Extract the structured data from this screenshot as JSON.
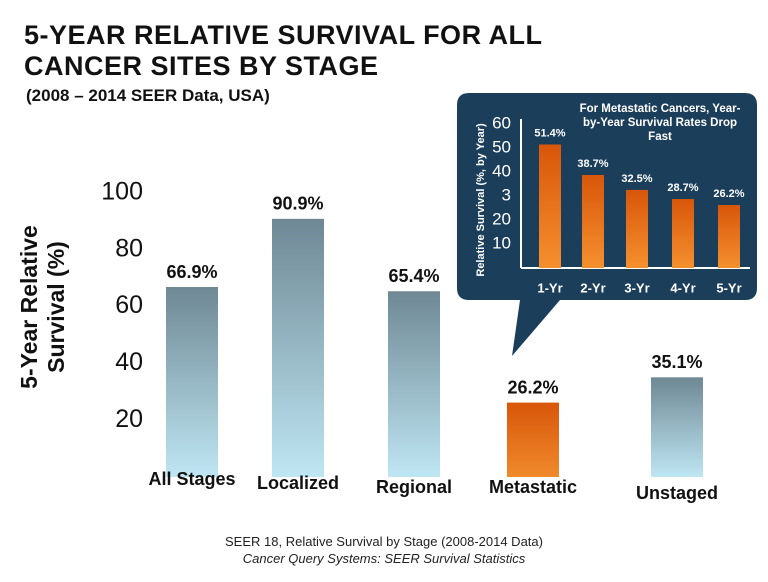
{
  "chart_data": [
    {
      "type": "bar",
      "title": "5-YEAR RELATIVE SURVIVAL FOR ALL CANCER SITES BY STAGE",
      "subtitle": "(2008 – 2014 SEER Data, USA)",
      "y_label": "5-Year Relative Survival (%)",
      "categories": [
        "All Stages",
        "Localized",
        "Regional",
        "Metastatic",
        "Unstaged"
      ],
      "values": [
        66.9,
        90.9,
        65.4,
        26.2,
        35.1
      ],
      "value_labels": [
        "66.9%",
        "90.9%",
        "65.4%",
        "26.2%",
        "35.1%"
      ],
      "colors": [
        "#6e8894",
        "#6e8894",
        "#6e8894",
        "#d8560a",
        "#6e8894"
      ],
      "colors_bottom": [
        "#bfe6f3",
        "#bfe6f3",
        "#bfe6f3",
        "#f08a2c",
        "#bfe6f3"
      ],
      "ylim": [
        0,
        100
      ],
      "yticks": [
        20,
        40,
        60,
        80,
        100
      ],
      "source": [
        "SEER 18, Relative Survival by Stage (2008-2014 Data)",
        "Cancer Query Systems: SEER Survival Statistics"
      ]
    },
    {
      "type": "bar",
      "title": "For Metastatic Cancers, Year-by-Year Survival Rates Drop Fast",
      "y_label": "Relative Survival (%, by Year)",
      "categories": [
        "1-Yr",
        "2-Yr",
        "3-Yr",
        "4-Yr",
        "5-Yr"
      ],
      "values": [
        51.4,
        38.7,
        32.5,
        28.7,
        26.2
      ],
      "value_labels": [
        "51.4%",
        "38.7%",
        "32.5%",
        "28.7%",
        "26.2%"
      ],
      "color": "#d8560a",
      "color_bottom": "#f5902e",
      "background": "#1b3e5b",
      "ylim": [
        0,
        62
      ],
      "yticks": [
        10,
        20,
        {
          "value": 30,
          "label": "3"
        },
        40,
        50,
        60
      ]
    }
  ]
}
